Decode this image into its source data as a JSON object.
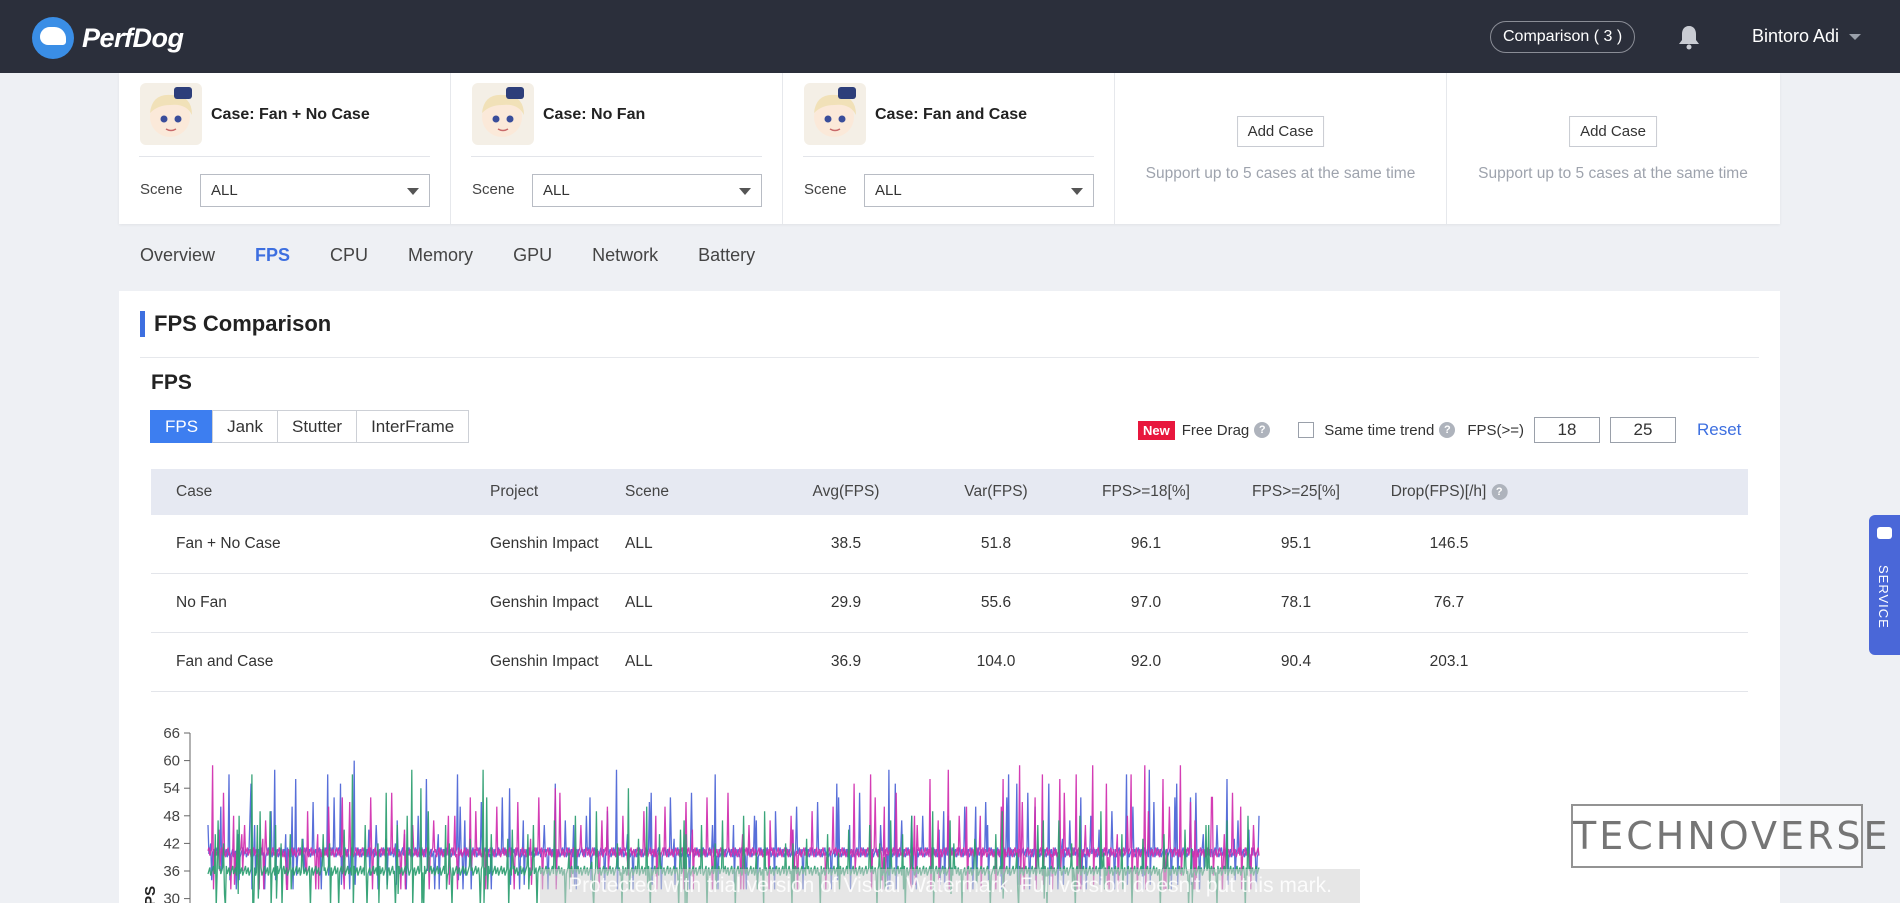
{
  "app": {
    "name": "PerfDog"
  },
  "header": {
    "comparison_label": "Comparison ( 3 )",
    "user_name": "Bintoro Adi"
  },
  "cases": [
    {
      "title": "Case:  Fan + No Case",
      "scene_label": "Scene",
      "scene_value": "ALL"
    },
    {
      "title": "Case:  No Fan",
      "scene_label": "Scene",
      "scene_value": "ALL"
    },
    {
      "title": "Case:  Fan and Case",
      "scene_label": "Scene",
      "scene_value": "ALL"
    }
  ],
  "add_slots": [
    {
      "button": "Add Case",
      "hint": "Support up to 5 cases at the same time"
    },
    {
      "button": "Add Case",
      "hint": "Support up to 5 cases at the same time"
    }
  ],
  "tabs": [
    "Overview",
    "FPS",
    "CPU",
    "Memory",
    "GPU",
    "Network",
    "Battery"
  ],
  "active_tab": "FPS",
  "panel": {
    "title": "FPS Comparison",
    "section_title": "FPS"
  },
  "segments": [
    "FPS",
    "Jank",
    "Stutter",
    "InterFrame"
  ],
  "active_segment": "FPS",
  "controls": {
    "new_badge": "New",
    "free_drag": "Free Drag",
    "same_time_trend": "Same time trend",
    "fps_ge_label": "FPS(>=)",
    "threshold_1": "18",
    "threshold_2": "25",
    "reset": "Reset"
  },
  "table": {
    "headers": [
      "Case",
      "Project",
      "Scene",
      "Avg(FPS)",
      "Var(FPS)",
      "FPS>=18[%]",
      "FPS>=25[%]",
      "Drop(FPS)[/h]"
    ],
    "rows": [
      [
        "Fan + No Case",
        "Genshin Impact",
        "ALL",
        "38.5",
        "51.8",
        "96.1",
        "95.1",
        "146.5"
      ],
      [
        "No Fan",
        "Genshin Impact",
        "ALL",
        "29.9",
        "55.6",
        "97.0",
        "78.1",
        "76.7"
      ],
      [
        "Fan and Case",
        "Genshin Impact",
        "ALL",
        "36.9",
        "104.0",
        "92.0",
        "90.4",
        "203.1"
      ]
    ]
  },
  "service_label": "SERVICE",
  "watermark_text": "Protected with trial version of Visual Watermark. Full version doesn't put this mark.",
  "logo_watermark": "TECHNOVERSE",
  "chart_data": {
    "type": "line",
    "ylabel": "FPS",
    "y_ticks": [
      30,
      36,
      42,
      48,
      54,
      60,
      66
    ],
    "ylim": [
      30,
      66
    ],
    "colors": {
      "blue": "#4a63d6",
      "magenta": "#d02cae",
      "green": "#2a9d6f"
    },
    "series": [
      {
        "color": "#4a63d6",
        "baseline": 40,
        "spikes": [
          [
            3,
            42
          ],
          [
            14,
            50
          ],
          [
            23,
            57
          ],
          [
            33,
            44
          ],
          [
            47,
            55
          ],
          [
            51,
            46
          ],
          [
            73,
            58
          ],
          [
            85,
            44
          ],
          [
            96,
            56
          ],
          [
            104,
            43
          ],
          [
            131,
            57
          ],
          [
            145,
            55
          ],
          [
            160,
            60
          ],
          [
            176,
            45
          ],
          [
            195,
            43
          ],
          [
            205,
            42
          ],
          [
            215,
            44
          ],
          [
            239,
            56
          ],
          [
            252,
            44
          ],
          [
            273,
            57
          ],
          [
            281,
            47
          ],
          [
            287,
            43
          ],
          [
            330,
            54
          ],
          [
            345,
            47
          ],
          [
            380,
            55
          ],
          [
            400,
            46
          ],
          [
            418,
            52
          ],
          [
            447,
            58
          ],
          [
            459,
            44
          ],
          [
            485,
            53
          ],
          [
            510,
            43
          ],
          [
            555,
            57
          ],
          [
            575,
            46
          ],
          [
            600,
            47
          ],
          [
            640,
            45
          ],
          [
            688,
            55
          ],
          [
            702,
            46
          ],
          [
            725,
            45
          ],
          [
            745,
            58
          ],
          [
            752,
            55
          ],
          [
            770,
            48
          ],
          [
            800,
            45
          ],
          [
            810,
            48
          ],
          [
            840,
            50
          ],
          [
            853,
            46
          ],
          [
            876,
            57
          ],
          [
            885,
            55
          ],
          [
            905,
            50
          ],
          [
            920,
            55
          ],
          [
            935,
            43
          ],
          [
            955,
            52
          ],
          [
            975,
            45
          ],
          [
            1005,
            57
          ],
          [
            1030,
            58
          ],
          [
            1060,
            55
          ],
          [
            1075,
            52
          ],
          [
            1089,
            44
          ],
          [
            1115,
            56
          ],
          [
            1123,
            43
          ],
          [
            1139,
            45
          ]
        ]
      },
      {
        "color": "#d02cae",
        "baseline": 40,
        "spikes": [
          [
            5,
            59
          ],
          [
            12,
            45
          ],
          [
            28,
            48
          ],
          [
            37,
            44
          ],
          [
            60,
            43
          ],
          [
            85,
            38
          ],
          [
            107,
            36
          ],
          [
            120,
            44
          ],
          [
            147,
            52
          ],
          [
            215,
            45
          ],
          [
            263,
            48
          ],
          [
            287,
            52
          ],
          [
            353,
            43
          ],
          [
            380,
            54
          ],
          [
            437,
            50
          ],
          [
            459,
            38
          ],
          [
            490,
            48
          ],
          [
            530,
            45
          ],
          [
            585,
            44
          ],
          [
            640,
            45
          ],
          [
            707,
            55
          ],
          [
            725,
            57
          ],
          [
            740,
            50
          ],
          [
            773,
            48
          ],
          [
            790,
            56
          ],
          [
            810,
            58
          ],
          [
            830,
            50
          ],
          [
            845,
            48
          ],
          [
            870,
            56
          ],
          [
            888,
            59
          ],
          [
            905,
            52
          ],
          [
            913,
            57
          ],
          [
            932,
            56
          ],
          [
            950,
            57
          ],
          [
            968,
            59
          ],
          [
            983,
            55
          ],
          [
            995,
            44
          ],
          [
            1010,
            57
          ],
          [
            1025,
            59
          ],
          [
            1045,
            56
          ],
          [
            1064,
            59
          ],
          [
            1080,
            47
          ],
          [
            1099,
            52
          ],
          [
            1112,
            44
          ],
          [
            1130,
            50
          ]
        ]
      },
      {
        "color": "#2a9d6f",
        "baseline": 36,
        "spikes": [
          [
            8,
            44
          ],
          [
            17,
            42
          ],
          [
            32,
            45
          ],
          [
            48,
            57
          ],
          [
            54,
            46
          ],
          [
            68,
            49
          ],
          [
            74,
            46
          ],
          [
            90,
            44
          ],
          [
            133,
            42
          ],
          [
            158,
            57
          ],
          [
            186,
            42
          ],
          [
            195,
            53
          ],
          [
            207,
            46
          ],
          [
            223,
            58
          ],
          [
            233,
            54
          ],
          [
            260,
            46
          ],
          [
            301,
            58
          ],
          [
            305,
            52
          ],
          [
            328,
            43
          ],
          [
            350,
            44
          ],
          [
            395,
            40
          ],
          [
            420,
            38
          ],
          [
            460,
            54
          ],
          [
            480,
            50
          ],
          [
            521,
            47
          ],
          [
            523,
            44
          ],
          [
            555,
            42
          ],
          [
            600,
            40
          ],
          [
            640,
            42
          ],
          [
            690,
            40
          ],
          [
            735,
            42
          ],
          [
            740,
            39
          ],
          [
            760,
            44
          ],
          [
            812,
            47
          ],
          [
            840,
            40
          ],
          [
            869,
            49
          ],
          [
            885,
            40
          ],
          [
            914,
            47
          ],
          [
            945,
            42
          ],
          [
            980,
            40
          ],
          [
            1000,
            44
          ],
          [
            1050,
            40
          ],
          [
            1076,
            41
          ],
          [
            1095,
            46
          ]
        ]
      }
    ]
  }
}
